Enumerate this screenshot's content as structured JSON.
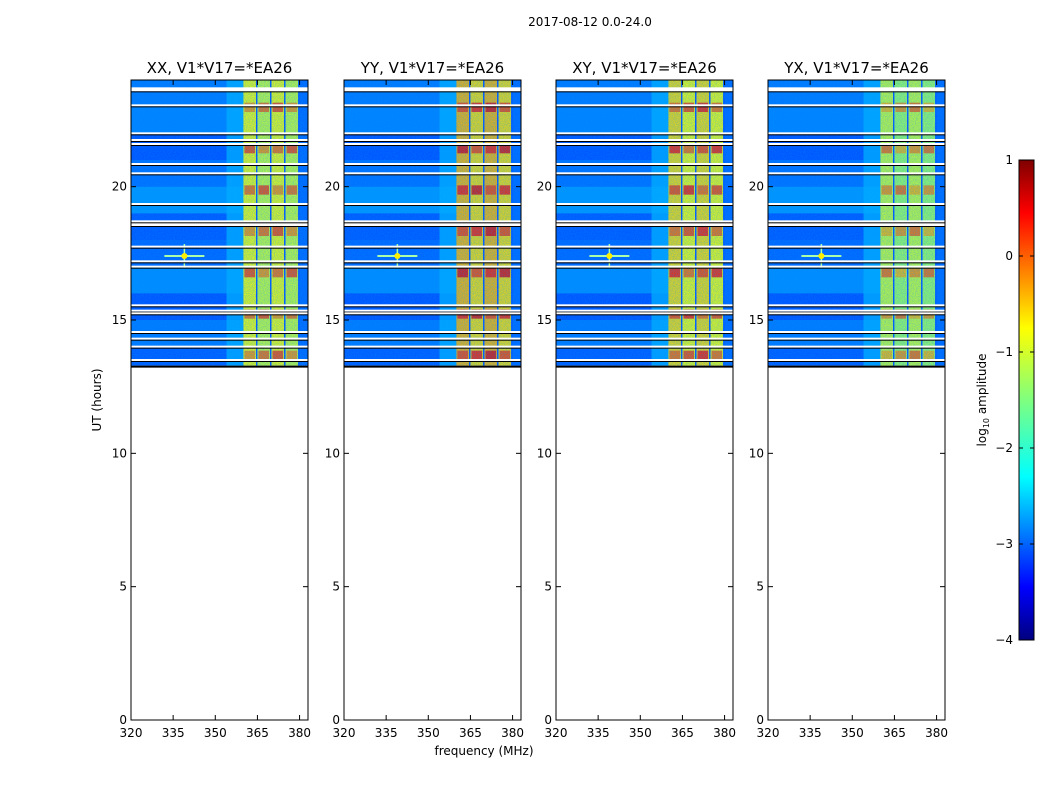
{
  "chart_data": {
    "type": "heatmap",
    "suptitle": "2017-08-12 0.0-24.0",
    "xlabel": "frequency (MHz)",
    "ylabel": "UT (hours)",
    "xlim": [
      320,
      383
    ],
    "ylim": [
      0,
      24
    ],
    "xticks": [
      320,
      335,
      350,
      365,
      380
    ],
    "yticks": [
      0,
      5,
      10,
      15,
      20
    ],
    "data_time_range_hours": [
      13.25,
      24.0
    ],
    "colorbar": {
      "label": "log10 amplitude",
      "label_base": "log",
      "label_sub": "10",
      "label_rest": " amplitude",
      "range": [
        -4,
        1
      ],
      "ticks": [
        1,
        0,
        -1,
        -2,
        -3,
        -4
      ],
      "tick_labels": [
        "1",
        "0",
        "−1",
        "−2",
        "−3",
        "−4"
      ],
      "colormap": "jet"
    },
    "colors": {
      "jet": [
        "#00007f",
        "#0000ff",
        "#007fff",
        "#00ffff",
        "#7fff7f",
        "#ffff00",
        "#ff7f00",
        "#ff0000",
        "#7f0000"
      ]
    },
    "panels": [
      {
        "title": "XX, V1*V17=*EA26",
        "rfi_level": 0.62,
        "rfi_start_mhz": 360
      },
      {
        "title": "YY, V1*V17=*EA26",
        "rfi_level": 0.7,
        "rfi_start_mhz": 360
      },
      {
        "title": "XY, V1*V17=*EA26",
        "rfi_level": 0.66,
        "rfi_start_mhz": 360
      },
      {
        "title": "YX, V1*V17=*EA26",
        "rfi_level": 0.58,
        "rfi_start_mhz": 360
      }
    ],
    "rfi_bands_mhz": [
      [
        360,
        364.5
      ],
      [
        365,
        369.5
      ],
      [
        370,
        374.5
      ],
      [
        375,
        379.5
      ]
    ],
    "narrowband_source": {
      "freq_mhz": 339,
      "time_hours": 17.4
    },
    "flagged_times_hours": [
      23.65,
      23.05,
      22.0,
      21.75,
      21.6,
      20.85,
      20.5,
      19.35,
      18.6,
      18.7,
      17.75,
      17.2,
      17.0,
      15.55,
      15.35,
      15.25,
      14.55,
      14.3,
      14.0,
      13.5,
      13.25
    ],
    "band_levels": [
      0.45,
      0.3,
      0.18,
      0.08,
      0.3,
      0.12,
      0.05,
      0.35,
      0.28,
      0.22,
      0.05,
      0.3,
      0.02,
      0.1,
      0.25,
      0.05,
      0.35,
      0.15,
      0.08,
      0.4,
      0.2,
      0.05,
      0.3,
      0.25
    ]
  }
}
